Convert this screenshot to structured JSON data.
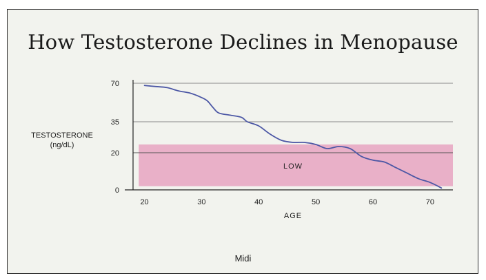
{
  "chart_data": {
    "type": "line",
    "title": "How Testosterone Declines in Menopause",
    "xlabel": "AGE",
    "ylabel_line1": "TESTOSTERONE",
    "ylabel_line2": "(ng/dL)",
    "footer": "Midi",
    "x_ticks": [
      20,
      30,
      40,
      50,
      60,
      70
    ],
    "y_ticks": [
      0,
      20,
      35,
      70
    ],
    "xlim": [
      18,
      74
    ],
    "band": {
      "label": "LOW",
      "from": 2,
      "to": 24,
      "x_from": 19,
      "x_to": 74
    },
    "series": [
      {
        "x": [
          20,
          22,
          24,
          26,
          28,
          30,
          31,
          32,
          33,
          35,
          37,
          38,
          40,
          42,
          44,
          46,
          48,
          50,
          52,
          54,
          56,
          58,
          60,
          62,
          64,
          66,
          68,
          70,
          72
        ],
        "y": [
          68,
          67,
          66,
          63,
          61,
          57,
          54,
          48,
          43,
          41,
          39,
          35,
          33,
          29,
          26,
          25,
          25,
          24,
          22,
          23,
          22,
          18,
          16,
          15,
          12,
          9,
          6,
          4,
          1
        ]
      }
    ],
    "colors": {
      "line": "#4c57a5",
      "band": "#e7a3c1",
      "grid": "#8a8a8a",
      "axis": "#222222"
    }
  }
}
